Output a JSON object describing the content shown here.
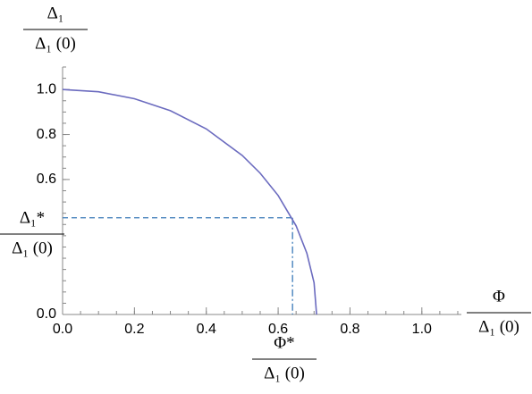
{
  "chart_data": {
    "type": "line",
    "y_label": {
      "numerator": "Δ₁",
      "denominator": "Δ₁ (0)"
    },
    "x_label": {
      "numerator": "Φ",
      "denominator": "Δ₁ (0)"
    },
    "xlim": [
      0,
      1.11
    ],
    "ylim": [
      0,
      1.1
    ],
    "xticks": [
      {
        "value": 0,
        "label": "0.0"
      },
      {
        "value": 0.2,
        "label": "0.2"
      },
      {
        "value": 0.4,
        "label": "0.4"
      },
      {
        "value": 0.6,
        "label": "0.6"
      },
      {
        "value": 0.8,
        "label": "0.8"
      },
      {
        "value": 1,
        "label": "1.0"
      }
    ],
    "yticks": [
      {
        "value": 0,
        "label": "0.0"
      },
      {
        "value": 0.6,
        "label": "0.6"
      },
      {
        "value": 0.8,
        "label": "0.8"
      },
      {
        "value": 1,
        "label": "1.0"
      }
    ],
    "x": [
      0,
      0.1,
      0.2,
      0.3,
      0.4,
      0.5,
      0.55,
      0.6,
      0.65,
      0.68,
      0.7,
      0.707
    ],
    "series": [
      {
        "color": "#6b6bbf",
        "values": [
          1,
          0.99,
          0.959,
          0.906,
          0.825,
          0.707,
          0.628,
          0.529,
          0.394,
          0.272,
          0.141,
          0
        ]
      }
    ],
    "marker": {
      "x": 0.64,
      "y": 0.43,
      "color": "#3a7ab8",
      "x_label": {
        "numerator": "Φ*",
        "denominator": "Δ₁ (0)"
      },
      "y_label": {
        "numerator": "Δ₁*",
        "denominator": "Δ₁ (0)"
      }
    }
  }
}
